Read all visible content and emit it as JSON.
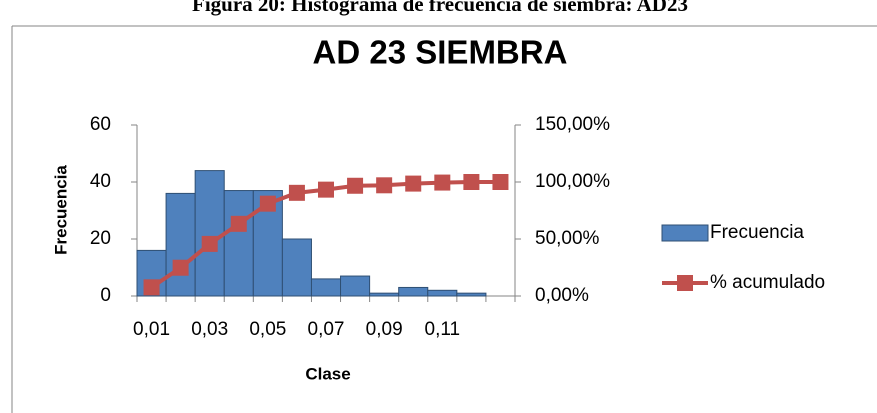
{
  "caption": "Figura 20: Histograma de frecuencia de siembra: AD23",
  "chart_data": {
    "type": "bar",
    "title": "AD 23 SIEMBRA",
    "xlabel": "Clase",
    "ylabel": "Frecuencia",
    "categories": [
      "0,01",
      null,
      "0,03",
      null,
      "0,05",
      null,
      "0,07",
      null,
      "0,09",
      null,
      "0,11",
      null,
      null
    ],
    "series": [
      {
        "name": "Frecuencia",
        "type": "bar",
        "color": "#4f81bd",
        "values": [
          16,
          36,
          44,
          37,
          37,
          20,
          6,
          7,
          1,
          3,
          2,
          1,
          0
        ]
      },
      {
        "name": "% acumulado",
        "type": "line",
        "axis": "y2",
        "color": "#c0504d",
        "values": [
          7.6,
          24.8,
          45.7,
          63.3,
          81.0,
          90.5,
          93.3,
          96.7,
          97.1,
          98.6,
          99.5,
          100,
          100
        ]
      }
    ],
    "ylim": [
      0,
      60
    ],
    "yticks": [
      0,
      20,
      40,
      60
    ],
    "y2lim": [
      0,
      150
    ],
    "y2ticks": [
      {
        "value": 0,
        "label": "0,00%"
      },
      {
        "value": 50,
        "label": "50,00%"
      },
      {
        "value": 100,
        "label": "100,00%"
      },
      {
        "value": 150,
        "label": "150,00%"
      }
    ],
    "legend": "right",
    "grid": false
  }
}
